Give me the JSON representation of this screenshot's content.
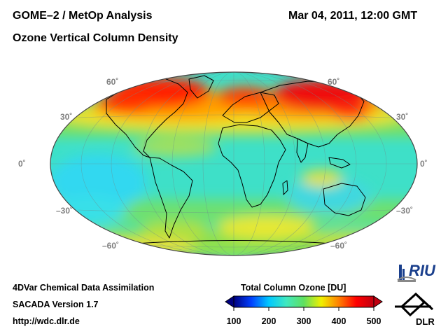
{
  "header": {
    "title_line1": "GOME–2 / MetOp Analysis",
    "title_line2": "Ozone Vertical Column Density",
    "datetime": "Mar 04, 2011, 12:00 GMT"
  },
  "map": {
    "projection": "Hammer-Aitoff",
    "lat_labels": {
      "left": [
        "60˚",
        "30˚",
        "0˚",
        "–30˚",
        "–60˚"
      ],
      "right": [
        "60˚",
        "30˚",
        "0˚",
        "–30˚",
        "–60˚"
      ]
    }
  },
  "footer": {
    "line1": "4DVar Chemical Data Assimilation",
    "line2": "SACADA Version 1.7",
    "line3": "http://wdc.dlr.de"
  },
  "colorbar": {
    "title": "Total Column Ozone [DU]",
    "ticks": [
      "100",
      "200",
      "300",
      "400",
      "500"
    ],
    "colors": [
      "#000080",
      "#0040ff",
      "#00c8ff",
      "#40e8c0",
      "#60e060",
      "#f0f000",
      "#ff8000",
      "#ff0000",
      "#c00010"
    ]
  },
  "logos": {
    "riu": "RIU",
    "dlr": "DLR"
  },
  "colors": {
    "label_gray": "#808080",
    "ocean_base": "#3ee0c8"
  }
}
